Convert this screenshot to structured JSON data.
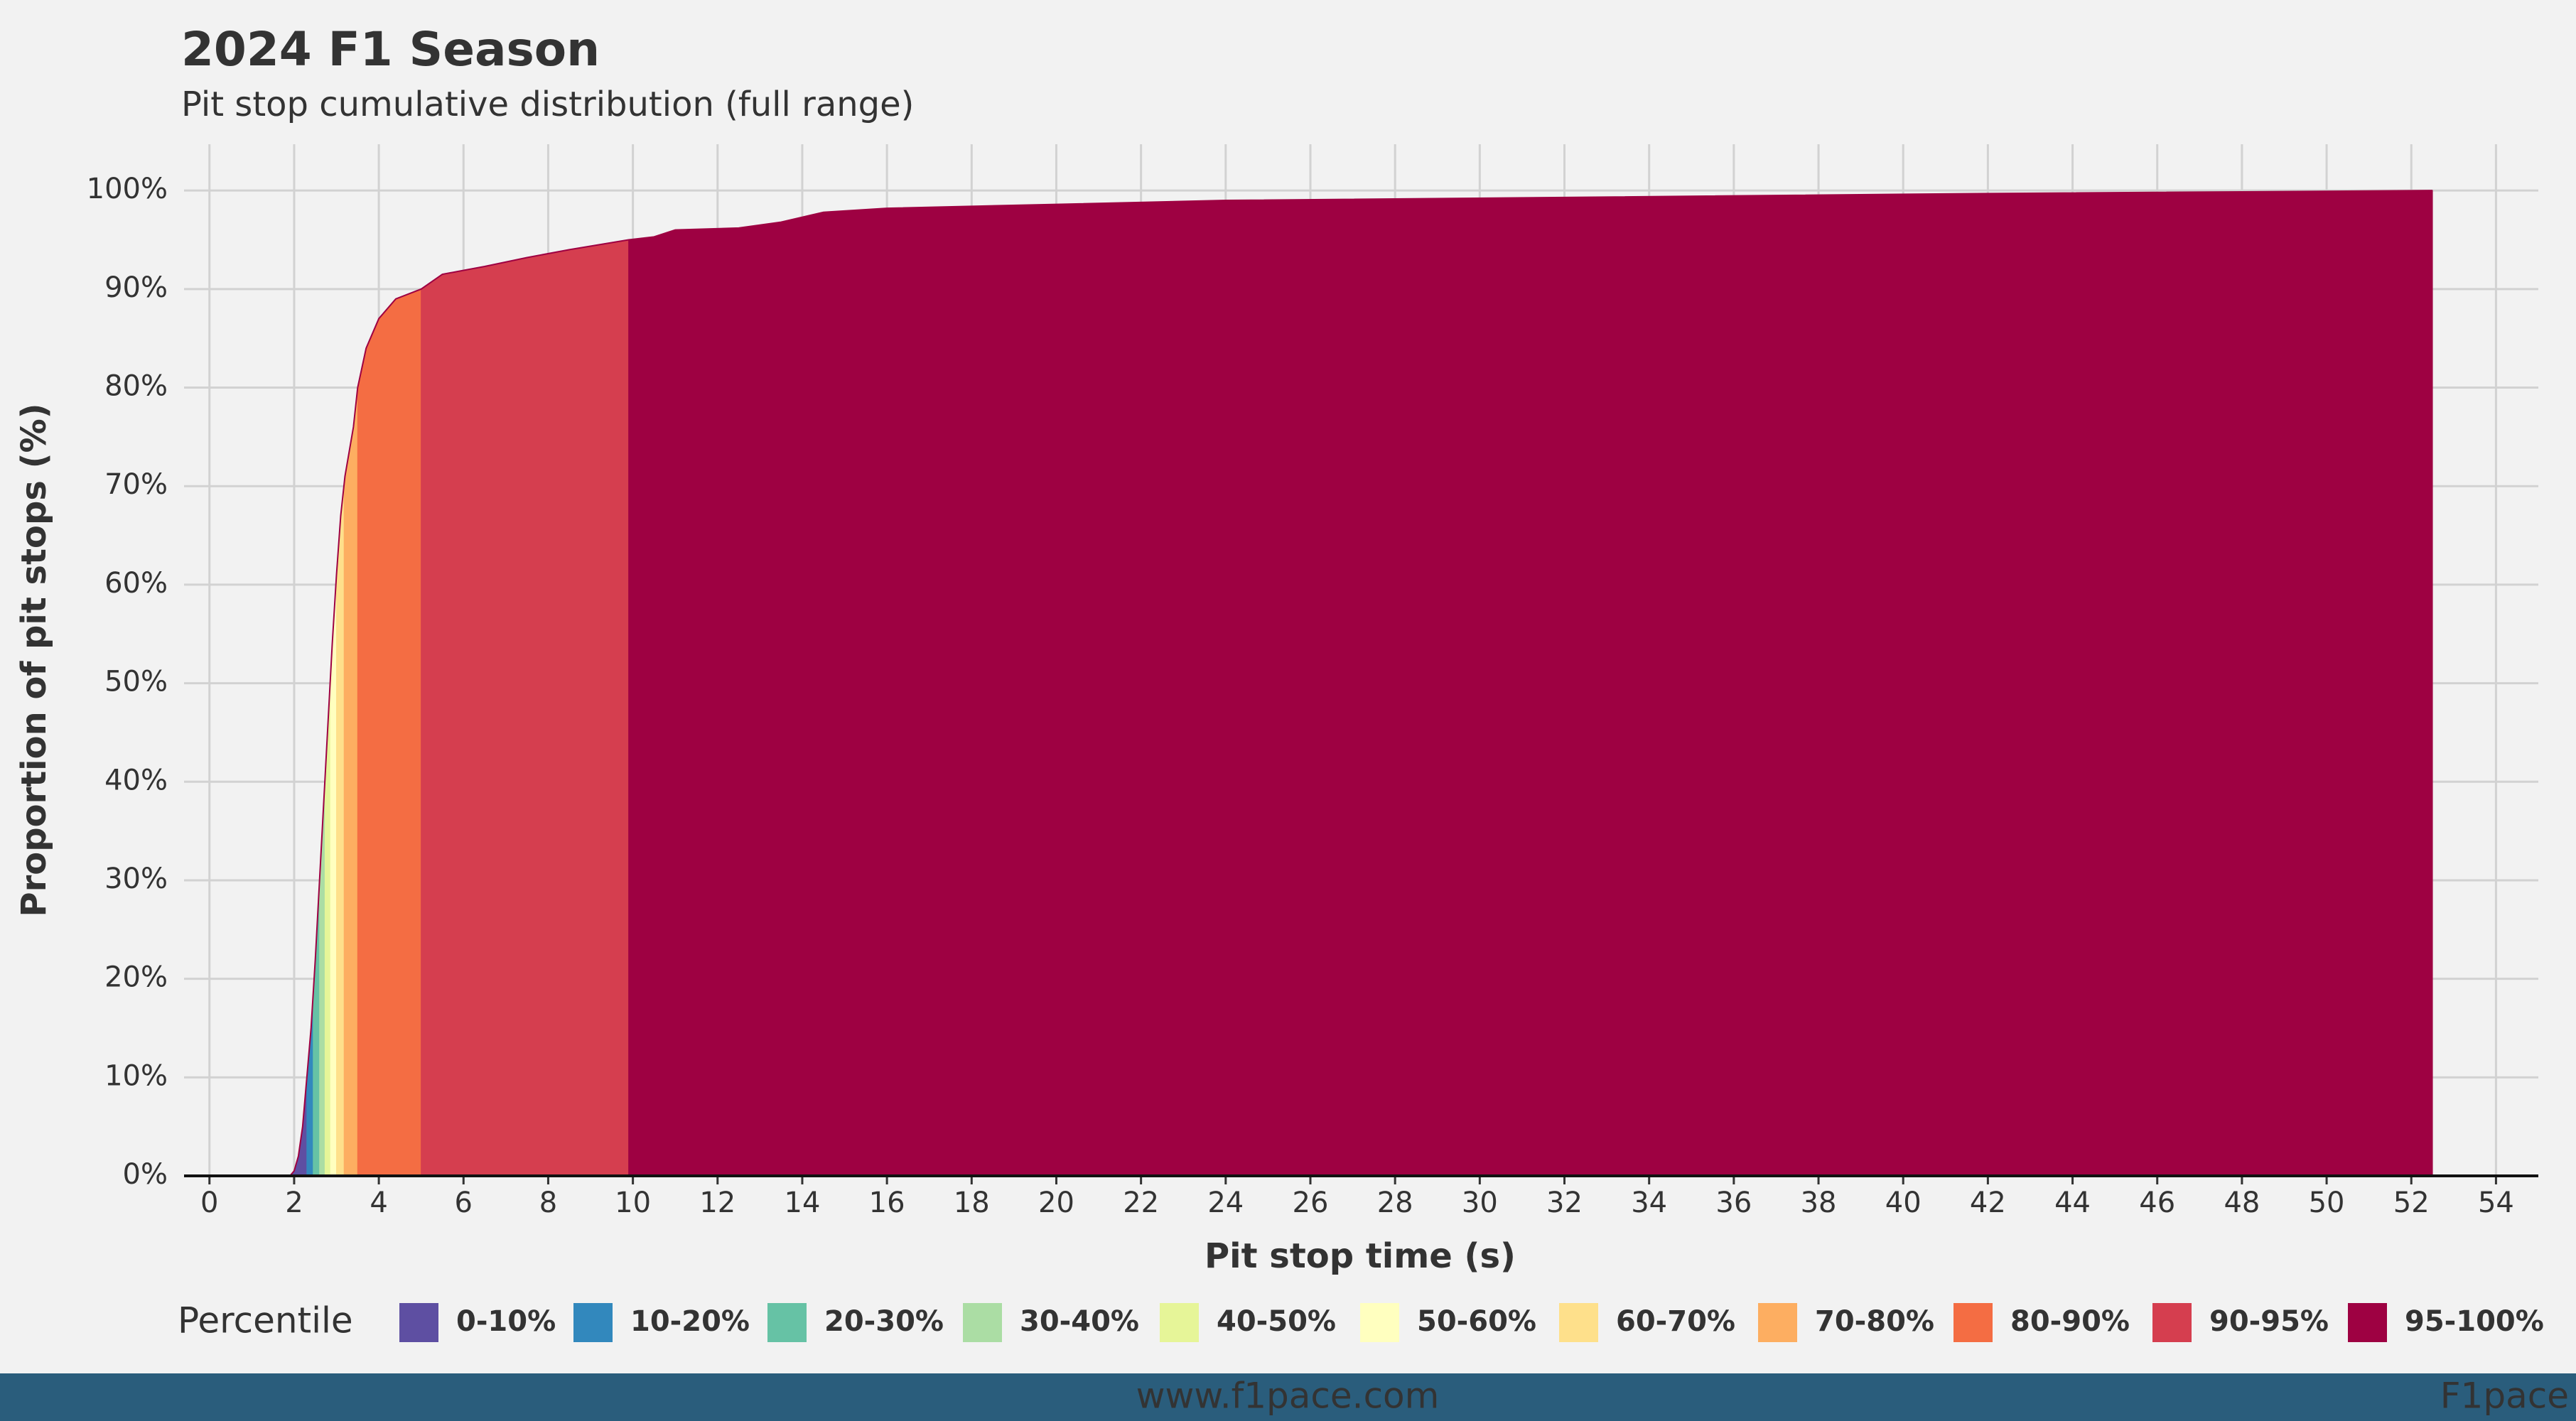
{
  "chart_data": {
    "type": "area",
    "title": "2024 F1 Season",
    "subtitle": "Pit stop cumulative distribution (full range)",
    "xlabel": "Pit stop time (s)",
    "ylabel": "Proportion of pit stops (%)",
    "legend_title": "Percentile",
    "x": [
      1.9,
      2.0,
      2.1,
      2.2,
      2.3,
      2.4,
      2.5,
      2.6,
      2.7,
      2.8,
      2.9,
      3.0,
      3.1,
      3.2,
      3.4,
      3.5,
      3.7,
      4.0,
      4.4,
      5.0,
      5.5,
      6.5,
      7.5,
      8.5,
      9.9,
      10.5,
      11,
      12.5,
      13.5,
      14.5,
      16,
      20,
      24,
      32,
      42,
      52.5
    ],
    "values": [
      0,
      0.5,
      2,
      5,
      10,
      15,
      22,
      30,
      38,
      46,
      54,
      61,
      67,
      71,
      76,
      80,
      84,
      87,
      89,
      90,
      91.5,
      92.3,
      93.2,
      94,
      95,
      95.3,
      96,
      96.2,
      96.8,
      97.8,
      98.2,
      98.6,
      99.0,
      99.3,
      99.7,
      100
    ],
    "bands": [
      {
        "name": "0-10%",
        "color": "#5e4fa2",
        "x_end": 2.3
      },
      {
        "name": "10-20%",
        "color": "#3288bd",
        "x_end": 2.45
      },
      {
        "name": "20-30%",
        "color": "#66c2a5",
        "x_end": 2.6
      },
      {
        "name": "30-40%",
        "color": "#abdda4",
        "x_end": 2.73
      },
      {
        "name": "40-50%",
        "color": "#e6f598",
        "x_end": 2.86
      },
      {
        "name": "50-60%",
        "color": "#ffffbf",
        "x_end": 3.0
      },
      {
        "name": "60-70%",
        "color": "#fee08b",
        "x_end": 3.18
      },
      {
        "name": "70-80%",
        "color": "#fdae61",
        "x_end": 3.5
      },
      {
        "name": "80-90%",
        "color": "#f46d43",
        "x_end": 5.0
      },
      {
        "name": "90-95%",
        "color": "#d53e4f",
        "x_end": 9.9
      },
      {
        "name": "95-100%",
        "color": "#9e0142",
        "x_end": 52.5
      }
    ],
    "xlim": [
      -0.6,
      55
    ],
    "ylim": [
      0,
      104.7
    ],
    "xticks": [
      0,
      2,
      4,
      6,
      8,
      10,
      12,
      14,
      16,
      18,
      20,
      22,
      24,
      26,
      28,
      30,
      32,
      34,
      36,
      38,
      40,
      42,
      44,
      46,
      48,
      50,
      52,
      54
    ],
    "yticks": [
      {
        "value": 0,
        "label": "0%"
      },
      {
        "value": 10,
        "label": "10%"
      },
      {
        "value": 20,
        "label": "20%"
      },
      {
        "value": 30,
        "label": "30%"
      },
      {
        "value": 40,
        "label": "40%"
      },
      {
        "value": 50,
        "label": "50%"
      },
      {
        "value": 60,
        "label": "60%"
      },
      {
        "value": 70,
        "label": "70%"
      },
      {
        "value": 80,
        "label": "80%"
      },
      {
        "value": 90,
        "label": "90%"
      },
      {
        "value": 100,
        "label": "100%"
      }
    ],
    "grid": true
  },
  "footer": {
    "url": "www.f1pace.com",
    "brand": "F1pace"
  }
}
